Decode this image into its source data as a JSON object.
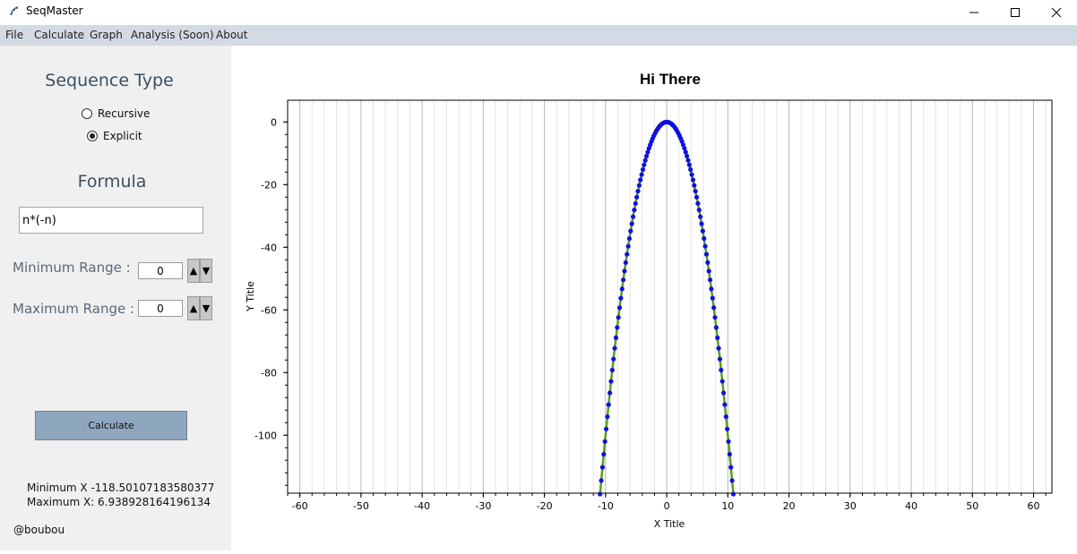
{
  "window": {
    "title": "SeqMaster",
    "controls": [
      "minimize-icon",
      "maximize-icon",
      "close-icon"
    ]
  },
  "menu": [
    "File",
    "Calculate",
    "Graph",
    "Analysis (Soon)",
    "About"
  ],
  "sidebar": {
    "sequence_type_heading": "Sequence Type",
    "options": [
      {
        "label": "Recursive",
        "checked": false
      },
      {
        "label": "Explicit",
        "checked": true
      }
    ],
    "formula_heading": "Formula",
    "formula_value": "n*(-n)",
    "min_range_label": "Minimum Range :",
    "min_range_value": "0",
    "max_range_label": "Maximum Range :",
    "max_range_value": "0",
    "calculate_label": "Calculate",
    "min_x_text": "Minimum X -118.50107183580377",
    "max_x_text": "Maximum X: 6.938928164196134",
    "credit": "@boubou"
  },
  "colors": {
    "menubar": "#d3dae2",
    "panel": "#f0f0f0",
    "button": "#8fa7be",
    "line": "#5a9e1a",
    "markers": "#1010e0"
  },
  "chart_data": {
    "type": "line",
    "title": "Hi There",
    "xlabel": "X Title",
    "ylabel": "Y Title",
    "xlim": [
      -62,
      63
    ],
    "ylim": [
      -118.5,
      6.94
    ],
    "x_ticks": [
      -60,
      -50,
      -40,
      -30,
      -20,
      -10,
      0,
      10,
      20,
      30,
      40,
      50,
      60
    ],
    "y_ticks": [
      0,
      -20,
      -40,
      -60,
      -80,
      -100
    ],
    "grid": "vertical minor lines every 2 units, major every 10",
    "series": [
      {
        "formula": "y = n*(-n)",
        "x": [
          -10.9,
          -10.7,
          -10.5,
          -10.3,
          -10.1,
          -9.9,
          -9.7,
          -9.5,
          -9.3,
          -9.1,
          -8.9,
          -8.7,
          -8.5,
          -8.3,
          -8.1,
          -7.9,
          -7.7,
          -7.5,
          -7.3,
          -7.1,
          -6.9,
          -6.7,
          -6.5,
          -6.3,
          -6.1,
          -5.9,
          -5.7,
          -5.5,
          -5.3,
          -5.1,
          -4.9,
          -4.7,
          -4.5,
          -4.3,
          -4.1,
          -3.9,
          -3.7,
          -3.5,
          -3.3,
          -3.1,
          -2.9,
          -2.7,
          -2.5,
          -2.3,
          -2.1,
          -1.9,
          -1.7,
          -1.5,
          -1.3,
          -1.1,
          -0.9,
          -0.7,
          -0.5,
          -0.3,
          -0.1,
          0.1,
          0.3,
          0.5,
          0.7,
          0.9,
          1.1,
          1.3,
          1.5,
          1.7,
          1.9,
          2.1,
          2.3,
          2.5,
          2.7,
          2.9,
          3.1,
          3.3,
          3.5,
          3.7,
          3.9,
          4.1,
          4.3,
          4.5,
          4.7,
          4.9,
          5.1,
          5.3,
          5.5,
          5.7,
          5.9,
          6.1,
          6.3,
          6.5,
          6.7,
          6.9,
          7.1,
          7.3,
          7.5,
          7.7,
          7.9,
          8.1,
          8.3,
          8.5,
          8.7,
          8.9,
          9.1,
          9.3,
          9.5,
          9.7,
          9.9,
          10.1,
          10.3,
          10.5,
          10.7,
          10.9
        ],
        "y": [
          -118.81,
          -114.49,
          -110.25,
          -106.09,
          -102.01,
          -98.01,
          -94.09,
          -90.25,
          -86.49,
          -82.81,
          -79.21,
          -75.69,
          -72.25,
          -68.89,
          -65.61,
          -62.41,
          -59.29,
          -56.25,
          -53.29,
          -50.41,
          -47.61,
          -44.89,
          -42.25,
          -39.69,
          -37.21,
          -34.81,
          -32.49,
          -30.25,
          -28.09,
          -26.01,
          -24.01,
          -22.09,
          -20.25,
          -18.49,
          -16.81,
          -15.21,
          -13.69,
          -12.25,
          -10.89,
          -9.61,
          -8.41,
          -7.29,
          -6.25,
          -5.29,
          -4.41,
          -3.61,
          -2.89,
          -2.25,
          -1.69,
          -1.21,
          -0.81,
          -0.49,
          -0.25,
          -0.09,
          -0.01,
          -0.01,
          -0.09,
          -0.25,
          -0.49,
          -0.81,
          -1.21,
          -1.69,
          -2.25,
          -2.89,
          -3.61,
          -4.41,
          -5.29,
          -6.25,
          -7.29,
          -8.41,
          -9.61,
          -10.89,
          -12.25,
          -13.69,
          -15.21,
          -16.81,
          -18.49,
          -20.25,
          -22.09,
          -24.01,
          -26.01,
          -28.09,
          -30.25,
          -32.49,
          -34.81,
          -37.21,
          -39.69,
          -42.25,
          -44.89,
          -47.61,
          -50.41,
          -53.29,
          -56.25,
          -59.29,
          -62.41,
          -65.61,
          -68.89,
          -72.25,
          -75.69,
          -79.21,
          -82.81,
          -86.49,
          -90.25,
          -94.09,
          -98.01,
          -102.01,
          -106.09,
          -110.25,
          -114.49,
          -118.81
        ]
      }
    ]
  }
}
